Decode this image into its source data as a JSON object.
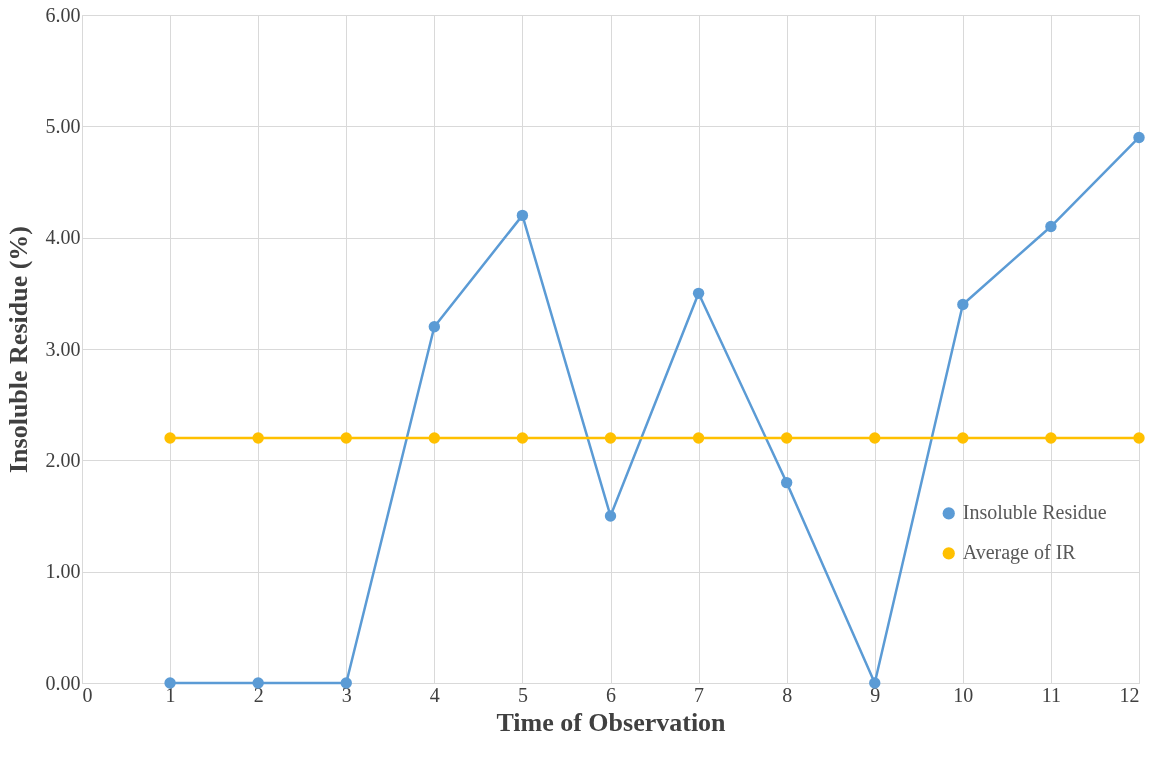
{
  "chart_data": {
    "type": "line",
    "xlabel": "Time of Observation",
    "ylabel": "Insoluble Residue (%)",
    "x": [
      1,
      2,
      3,
      4,
      5,
      6,
      7,
      8,
      9,
      10,
      11,
      12
    ],
    "series": [
      {
        "name": "Insoluble Residue",
        "color": "#5b9bd5",
        "values": [
          0,
          0,
          0,
          3.2,
          4.2,
          1.5,
          3.5,
          1.8,
          0,
          3.4,
          4.1,
          4.9
        ]
      },
      {
        "name": "Average of IR",
        "color": "#ffc000",
        "values": [
          2.2,
          2.2,
          2.2,
          2.2,
          2.2,
          2.2,
          2.2,
          2.2,
          2.2,
          2.2,
          2.2,
          2.2
        ]
      }
    ],
    "xlim": [
      0,
      12
    ],
    "xticks": [
      0,
      1,
      2,
      3,
      4,
      5,
      6,
      7,
      8,
      9,
      10,
      11,
      12
    ],
    "ylim": [
      0,
      6
    ],
    "yticks": [
      {
        "value": 0,
        "label": "0.00"
      },
      {
        "value": 1,
        "label": "1.00"
      },
      {
        "value": 2,
        "label": "2.00"
      },
      {
        "value": 3,
        "label": "3.00"
      },
      {
        "value": 4,
        "label": "4.00"
      },
      {
        "value": 5,
        "label": "5.00"
      },
      {
        "value": 6,
        "label": "6.00"
      }
    ],
    "grid": true,
    "legend": "bottom right",
    "marker": "circle",
    "line_style": "solid"
  }
}
